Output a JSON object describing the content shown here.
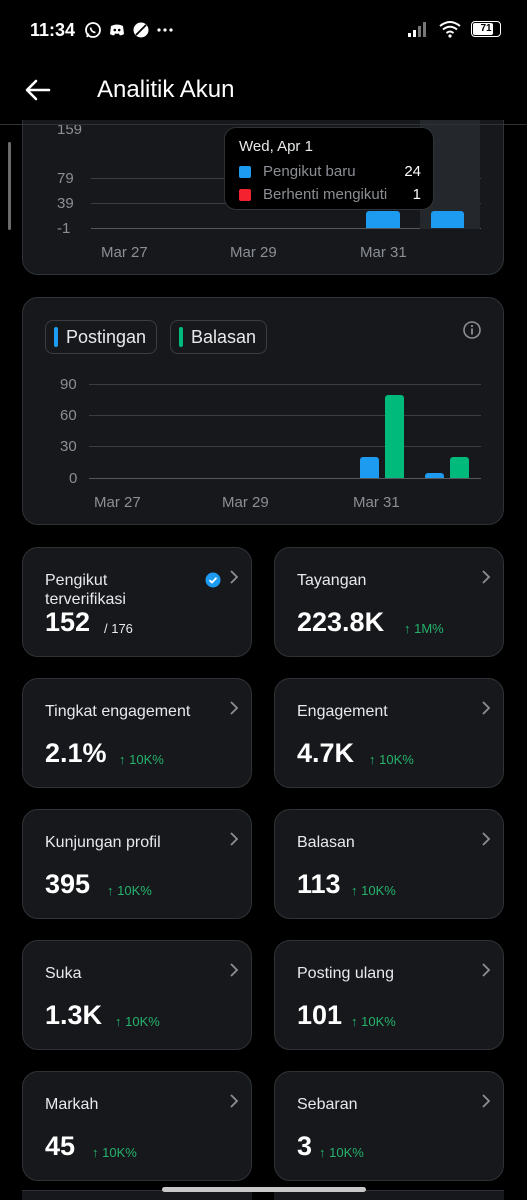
{
  "status_bar": {
    "time": "11:34",
    "battery": "71"
  },
  "header": {
    "title": "Analitik Akun"
  },
  "follower_chart": {
    "y_ticks": [
      "159",
      "79",
      "39",
      "-1"
    ],
    "x_ticks": [
      "Mar 27",
      "Mar 29",
      "Mar 31"
    ],
    "tooltip": {
      "date": "Wed, Apr 1",
      "rows": [
        {
          "label": "Pengikut baru",
          "value": "24",
          "color": "#1d9bf0"
        },
        {
          "label": "Berhenti mengikuti",
          "value": "1",
          "color": "#f4212e"
        }
      ]
    }
  },
  "posts_chart": {
    "legend": [
      {
        "label": "Postingan",
        "color": "#1d9bf0"
      },
      {
        "label": "Balasan",
        "color": "#00ba7c"
      }
    ],
    "y_ticks": [
      "90",
      "60",
      "30",
      "0"
    ],
    "x_ticks": [
      "Mar 27",
      "Mar 29",
      "Mar 31"
    ]
  },
  "chart_data": [
    {
      "type": "bar",
      "categories": [
        "Mar 31",
        "Apr 1"
      ],
      "series": [
        {
          "name": "Pengikut baru",
          "values": [
            24,
            24
          ]
        },
        {
          "name": "Berhenti mengikuti",
          "values": [
            0,
            1
          ]
        }
      ],
      "ylim": [
        -1,
        159
      ],
      "colors": [
        "#1d9bf0",
        "#f4212e"
      ]
    },
    {
      "type": "bar",
      "categories": [
        "Mar 31",
        "Apr 1"
      ],
      "series": [
        {
          "name": "Postingan",
          "values": [
            20,
            4
          ]
        },
        {
          "name": "Balasan",
          "values": [
            78,
            20
          ]
        }
      ],
      "ylim": [
        0,
        90
      ],
      "colors": [
        "#1d9bf0",
        "#00ba7c"
      ]
    }
  ],
  "metrics": [
    {
      "label": "Pengikut terverifikasi",
      "value": "152",
      "total": "/ 176",
      "change": ""
    },
    {
      "label": "Tayangan",
      "value": "223.8K",
      "change": "↑ 1M%"
    },
    {
      "label": "Tingkat engagement",
      "value": "2.1%",
      "change": "↑ 10K%"
    },
    {
      "label": "Engagement",
      "value": "4.7K",
      "change": "↑ 10K%"
    },
    {
      "label": "Kunjungan profil",
      "value": "395",
      "change": "↑ 10K%"
    },
    {
      "label": "Balasan",
      "value": "113",
      "change": "↑ 10K%"
    },
    {
      "label": "Suka",
      "value": "1.3K",
      "change": "↑ 10K%"
    },
    {
      "label": "Posting ulang",
      "value": "101",
      "change": "↑ 10K%"
    },
    {
      "label": "Markah",
      "value": "45",
      "change": "↑ 10K%"
    },
    {
      "label": "Sebaran",
      "value": "3",
      "change": "↑ 10K%"
    }
  ],
  "colors": {
    "background": "#000000",
    "card": "#16181c",
    "accent_blue": "#1d9bf0",
    "accent_green": "#00ba7c",
    "accent_red": "#f4212e",
    "positive_change": "#25b36c"
  }
}
